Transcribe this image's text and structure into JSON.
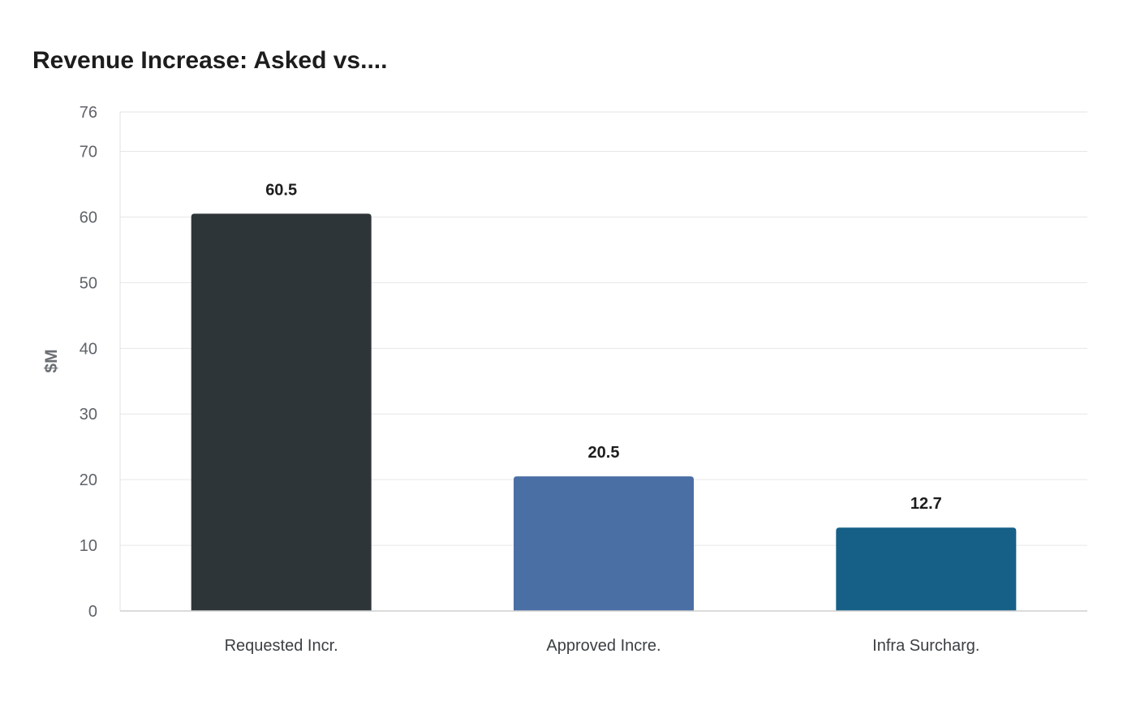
{
  "chart_data": {
    "type": "bar",
    "title": "Revenue Increase: Asked vs....",
    "xlabel": "",
    "ylabel": "$M",
    "categories": [
      "Requested Incr.",
      "Approved Incre.",
      "Infra Surcharg."
    ],
    "values": [
      60.5,
      20.5,
      12.7
    ],
    "data_labels": [
      "60.5",
      "20.5",
      "12.7"
    ],
    "ylim": [
      0,
      76
    ],
    "yticks": [
      0,
      10,
      20,
      30,
      40,
      50,
      60,
      70,
      76
    ],
    "colors": [
      "#2e3538",
      "#4a6fa5",
      "#166088"
    ],
    "grid": true,
    "legend": "none"
  }
}
